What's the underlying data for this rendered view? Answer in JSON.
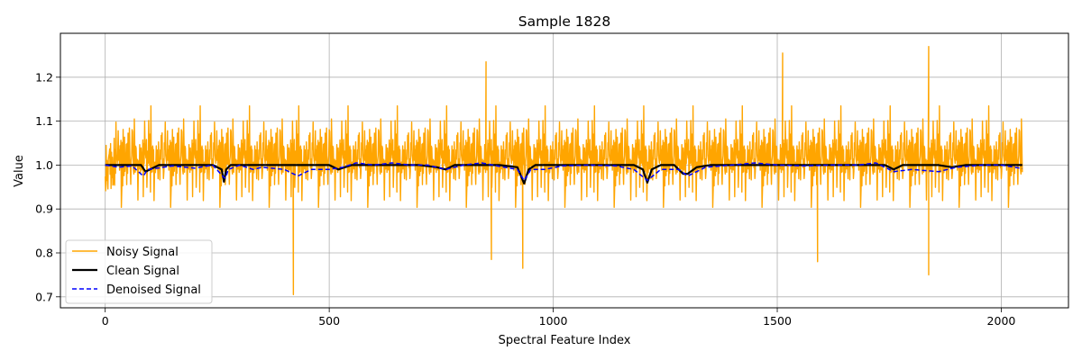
{
  "chart_data": {
    "type": "line",
    "title": "Sample 1828",
    "xlabel": "Spectral Feature Index",
    "ylabel": "Value",
    "xlim": [
      -100,
      2150
    ],
    "ylim": [
      0.675,
      1.3
    ],
    "xticks": [
      0,
      500,
      1000,
      1500,
      2000
    ],
    "xtick_labels": [
      "0",
      "500",
      "1000",
      "1500",
      "2000"
    ],
    "yticks": [
      0.7,
      0.8,
      0.9,
      1.0,
      1.1,
      1.2
    ],
    "ytick_labels": [
      "0.7",
      "0.8",
      "0.9",
      "1.0",
      "1.1",
      "1.2"
    ],
    "grid": true,
    "legend_position": "lower-left",
    "colors": {
      "noisy": "#ffa500",
      "clean": "#000000",
      "denoised": "#0000ff"
    },
    "series": [
      {
        "name": "Noisy Signal",
        "style": "solid",
        "x_range": [
          0,
          2047
        ],
        "baseline": 1.0,
        "noise_std": 0.08,
        "min": 0.705,
        "max": 1.27,
        "extremes": [
          [
            420,
            0.705
          ],
          [
            932,
            0.765
          ],
          [
            1838,
            1.27
          ],
          [
            1838,
            0.75
          ],
          [
            1512,
            1.255
          ],
          [
            850,
            1.235
          ],
          [
            1590,
            0.78
          ],
          [
            862,
            0.785
          ]
        ]
      },
      {
        "name": "Clean Signal",
        "style": "solid",
        "x": [
          0,
          80,
          90,
          100,
          120,
          240,
          260,
          265,
          270,
          280,
          300,
          500,
          520,
          550,
          600,
          700,
          740,
          760,
          780,
          880,
          920,
          935,
          945,
          960,
          1000,
          1180,
          1200,
          1210,
          1220,
          1240,
          1270,
          1290,
          1300,
          1320,
          1350,
          1450,
          1500,
          1700,
          1740,
          1760,
          1780,
          1860,
          1890,
          1920,
          2047
        ],
        "values": [
          1.0,
          1.0,
          0.985,
          0.99,
          1.0,
          1.0,
          0.99,
          0.962,
          0.99,
          1.0,
          1.0,
          1.0,
          0.99,
          1.0,
          1.0,
          1.0,
          0.995,
          0.99,
          1.0,
          1.0,
          0.995,
          0.958,
          0.99,
          1.0,
          1.0,
          1.0,
          0.99,
          0.96,
          0.99,
          1.0,
          1.0,
          0.98,
          0.98,
          0.995,
          1.0,
          1.0,
          1.0,
          1.0,
          1.0,
          0.99,
          1.0,
          1.0,
          0.995,
          1.0,
          1.0
        ]
      },
      {
        "name": "Denoised Signal",
        "style": "dashed",
        "x": [
          0,
          30,
          60,
          85,
          95,
          110,
          150,
          200,
          240,
          262,
          268,
          275,
          300,
          330,
          350,
          400,
          430,
          460,
          500,
          530,
          560,
          600,
          640,
          680,
          720,
          760,
          800,
          840,
          880,
          920,
          935,
          950,
          980,
          1020,
          1080,
          1140,
          1180,
          1210,
          1240,
          1280,
          1300,
          1340,
          1400,
          1450,
          1500,
          1560,
          1620,
          1680,
          1720,
          1760,
          1800,
          1860,
          1900,
          1960,
          2000,
          2047
        ],
        "values": [
          1.0,
          0.995,
          0.998,
          0.975,
          0.99,
          0.992,
          0.998,
          0.993,
          1.0,
          0.975,
          0.97,
          0.99,
          1.0,
          0.99,
          0.995,
          0.99,
          0.975,
          0.99,
          0.99,
          0.995,
          1.005,
          1.0,
          1.005,
          1.0,
          1.0,
          0.99,
          1.0,
          1.005,
          0.997,
          0.99,
          0.965,
          0.99,
          0.99,
          0.998,
          1.0,
          0.998,
          0.99,
          0.965,
          0.99,
          0.99,
          0.975,
          0.995,
          1.0,
          1.005,
          1.0,
          0.998,
          1.0,
          1.0,
          1.005,
          0.985,
          0.99,
          0.985,
          0.995,
          1.0,
          1.0,
          0.992
        ]
      }
    ]
  }
}
